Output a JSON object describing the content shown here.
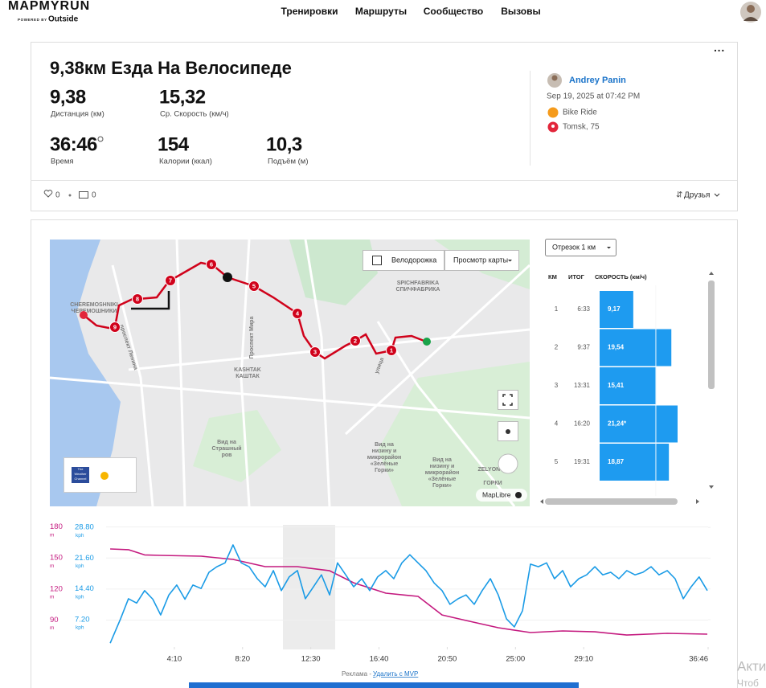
{
  "nav": {
    "brand": "MAPMYRUN",
    "powered_by": "POWERED BY",
    "partner": "Outside",
    "links": [
      "Тренировки",
      "Маршруты",
      "Сообщество",
      "Вызовы"
    ]
  },
  "workout": {
    "title": "9,38км Езда На Велосипеде",
    "stats": [
      {
        "value": 9.38,
        "label": "9,38",
        "name": "Дистанция (км)"
      },
      {
        "value": 15.32,
        "label": "15,32",
        "name": "Ср. Скорость (км/ч)"
      },
      {
        "value": "36:46",
        "name": "Время"
      },
      {
        "value": 154,
        "name": "Калории (ккал)"
      },
      {
        "value": 10.3,
        "label": "10,3",
        "name": "Подъём (м)"
      }
    ],
    "user": "Andrey Panin",
    "date": "Sep 19, 2025 at 07:42 PM",
    "activity": "Bike Ride",
    "location": "Tomsk, 75",
    "likes": 0,
    "comments": 0,
    "visibility": "Друзья"
  },
  "map": {
    "bike_lanes": "Велодорожка",
    "view": "Просмотр карты",
    "attribution": "MapLibre",
    "weather": [
      "The",
      "Weather",
      "Channel"
    ],
    "markers": [
      "1",
      "2",
      "3",
      "4",
      "5",
      "6",
      "7",
      "8",
      "9"
    ],
    "places": [
      [
        "CHEREMOSHNIKI"
      ],
      [
        "ЧЕРЕМОШНИКИ"
      ],
      [
        "Проспект Мира"
      ],
      [
        "проспект Ленина"
      ],
      [
        "улица"
      ],
      [
        "KASHTAK"
      ],
      [
        "КАШТАК"
      ],
      [
        "SPICHFABRIKA"
      ],
      [
        "СПИЧФАБРИКА"
      ],
      [
        "Вид на",
        "Страшный",
        "ров"
      ],
      [
        "Вид на",
        "низину и",
        "микрорайон",
        "«Зелёные",
        "Горки»"
      ],
      [
        "Вид на",
        "низину и",
        "микрорайон",
        "«Зелёные",
        "Горки»"
      ],
      [
        "ZELYONYE"
      ],
      [
        "ГОРКИ"
      ]
    ]
  },
  "splits": {
    "selector": "Отрезок 1 км",
    "columns": [
      "КМ",
      "ИТОГ",
      "СКОРОСТЬ (км/ч)"
    ],
    "km": [
      1,
      2,
      3,
      4,
      5
    ],
    "totals": [
      "6:33",
      "9:37",
      "13:31",
      "16:20",
      "19:31"
    ],
    "values": [
      9.17,
      19.54,
      15.41,
      21.24,
      18.87
    ],
    "value_labels": [
      "9,17",
      "19,54",
      "15,41",
      "21,24*",
      "18,87"
    ],
    "xlim": [
      0,
      30
    ],
    "color": "#1e9bf0"
  },
  "chart": {
    "type": "line",
    "xlim": [
      0,
      2206
    ],
    "xticks": [
      {
        "value": 250,
        "label": "4:10"
      },
      {
        "value": 500,
        "label": "8:20"
      },
      {
        "value": 750,
        "label": "12:30"
      },
      {
        "value": 1000,
        "label": "16:40"
      },
      {
        "value": 1250,
        "label": "20:50"
      },
      {
        "value": 1500,
        "label": "25:00"
      },
      {
        "value": 1750,
        "label": "29:10"
      },
      {
        "value": 2206,
        "label": "36:46"
      }
    ],
    "ylim": [
      64,
      182
    ],
    "yticks": [
      90,
      120,
      150,
      180
    ],
    "y_unit": "m",
    "y2lim": [
      0.8,
      29.4
    ],
    "y2ticks": [
      {
        "value": 7.2,
        "label": "7.20"
      },
      {
        "value": 14.4,
        "label": "14.40"
      },
      {
        "value": 21.6,
        "label": "21.60"
      },
      {
        "value": 28.8,
        "label": "28.80"
      }
    ],
    "y2_unit": "kph",
    "grid": true,
    "series": [
      {
        "color": "#c41a7f",
        "axis": "y",
        "x": [
          15,
          82,
          141,
          200,
          348,
          465,
          583,
          701,
          819,
          907,
          1025,
          1143,
          1231,
          1319,
          1437,
          1555,
          1673,
          1791,
          1908,
          2056,
          2203
        ],
        "values": [
          158.7,
          158,
          153,
          152.5,
          151.7,
          148.6,
          141.6,
          141.6,
          137.7,
          126,
          116,
          112.9,
          95,
          89.6,
          82.6,
          78,
          79.5,
          78.7,
          75.6,
          77.2,
          76.4
        ]
      },
      {
        "color": "#1a9be6",
        "axis": "y2",
        "x": [
          15,
          53,
          82,
          112,
          141,
          171,
          200,
          230,
          259,
          289,
          318,
          348,
          377,
          406,
          436,
          465,
          495,
          524,
          554,
          583,
          613,
          642,
          671,
          701,
          730,
          760,
          789,
          819,
          848,
          878,
          907,
          937,
          966,
          995,
          1025,
          1054,
          1084,
          1113,
          1143,
          1172,
          1202,
          1231,
          1260,
          1290,
          1319,
          1349,
          1378,
          1408,
          1437,
          1467,
          1496,
          1526,
          1555,
          1584,
          1614,
          1643,
          1673,
          1702,
          1732,
          1761,
          1791,
          1820,
          1849,
          1879,
          1908,
          1938,
          1967,
          1997,
          2026,
          2056,
          2085,
          2115,
          2144,
          2173,
          2203
        ],
        "values": [
          1.7,
          7.4,
          12.1,
          11.1,
          14,
          12,
          8.3,
          13,
          15.3,
          12,
          15.3,
          14.5,
          18.3,
          19.6,
          20.5,
          24.7,
          20.5,
          19.6,
          16.8,
          14.9,
          18.7,
          14,
          17.2,
          18.7,
          12.1,
          14.9,
          17.7,
          13,
          20.5,
          17.7,
          14.9,
          16.8,
          14,
          17.2,
          18.7,
          16.8,
          20.5,
          22.4,
          20.5,
          18.7,
          15.8,
          14,
          10.8,
          12.1,
          13,
          10.8,
          14,
          16.8,
          13,
          7.4,
          5.5,
          9.3,
          20.2,
          19.6,
          20.5,
          16.8,
          18.7,
          14.9,
          16.8,
          17.7,
          19.6,
          17.7,
          18.3,
          16.8,
          18.7,
          17.7,
          18.3,
          19.6,
          17.7,
          18.7,
          16.8,
          12.1,
          14.9,
          17.2,
          14
        ]
      }
    ]
  },
  "ad": {
    "label": "Реклама -",
    "link": "Удалить с MVP"
  },
  "system": [
    "Акти",
    "Чтоб"
  ]
}
